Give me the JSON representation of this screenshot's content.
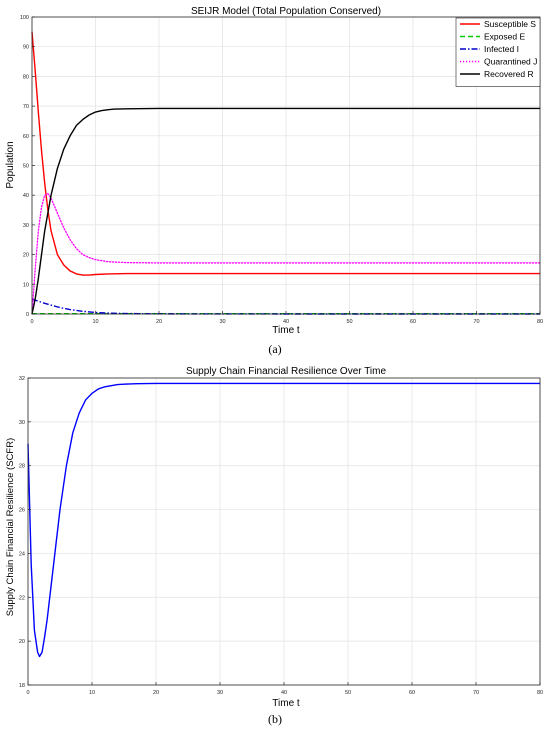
{
  "captions": {
    "a": "(a)",
    "b": "(b)"
  },
  "chart_data": [
    {
      "type": "line",
      "title": "SEIJR Model (Total Population Conserved)",
      "xlabel": "Time t",
      "ylabel": "Population",
      "xlim": [
        0,
        80
      ],
      "ylim": [
        0,
        100
      ],
      "xticks": [
        0,
        10,
        20,
        30,
        40,
        50,
        60,
        70,
        80
      ],
      "yticks": [
        0,
        10,
        20,
        30,
        40,
        50,
        60,
        70,
        80,
        90,
        100
      ],
      "grid": true,
      "legend_position": "top-right",
      "series": [
        {
          "name": "Susceptible S",
          "color": "#ff0000",
          "style": "solid",
          "x": [
            0,
            0.5,
            1,
            1.5,
            2,
            2.5,
            3,
            4,
            5,
            6,
            7,
            8,
            9,
            10,
            12,
            15,
            20,
            30,
            40,
            50,
            60,
            70,
            80
          ],
          "y": [
            95,
            82,
            68,
            55,
            44,
            35,
            28,
            20,
            16.5,
            14.5,
            13.5,
            13.1,
            13.1,
            13.3,
            13.5,
            13.6,
            13.6,
            13.6,
            13.6,
            13.6,
            13.6,
            13.6,
            13.6
          ]
        },
        {
          "name": "Exposed E",
          "color": "#00cc00",
          "style": "dashed",
          "x": [
            0,
            10,
            20,
            40,
            60,
            80
          ],
          "y": [
            0.1,
            0.1,
            0.1,
            0.1,
            0.1,
            0.1
          ]
        },
        {
          "name": "Infected I",
          "color": "#0000cc",
          "style": "dashdot",
          "x": [
            0,
            1,
            2,
            3,
            4,
            5,
            6,
            8,
            10,
            12,
            15,
            20,
            30,
            40,
            60,
            80
          ],
          "y": [
            5,
            4.3,
            3.6,
            3.0,
            2.4,
            1.9,
            1.5,
            0.9,
            0.5,
            0.3,
            0.15,
            0.05,
            0.02,
            0,
            0,
            0
          ]
        },
        {
          "name": "Quarantined J",
          "color": "#ff00ff",
          "style": "dotted",
          "x": [
            0,
            0.5,
            1,
            1.5,
            2,
            2.5,
            3,
            4,
            5,
            6,
            7,
            8,
            9,
            10,
            12,
            15,
            20,
            30,
            40,
            50,
            60,
            70,
            80
          ],
          "y": [
            0,
            15,
            28,
            36,
            40,
            40.5,
            39,
            34,
            29,
            25,
            22,
            20,
            19,
            18.3,
            17.6,
            17.3,
            17.2,
            17.2,
            17.2,
            17.2,
            17.2,
            17.2,
            17.2
          ]
        },
        {
          "name": "Recovered R",
          "color": "#000000",
          "style": "solid",
          "x": [
            0,
            0.5,
            1,
            1.5,
            2,
            3,
            4,
            5,
            6,
            7,
            8,
            9,
            10,
            11,
            12,
            13,
            15,
            20,
            30,
            40,
            50,
            60,
            70,
            80
          ],
          "y": [
            0,
            5,
            12,
            20,
            28,
            40,
            49,
            55.5,
            60,
            63.5,
            65.5,
            67,
            68,
            68.5,
            68.8,
            69,
            69.1,
            69.2,
            69.2,
            69.2,
            69.2,
            69.2,
            69.2,
            69.2
          ]
        }
      ]
    },
    {
      "type": "line",
      "title": "Supply Chain Financial Resilience Over Time",
      "xlabel": "Time t",
      "ylabel": "Supply Chain Financial Resilience (SCFR)",
      "xlim": [
        0,
        80
      ],
      "ylim": [
        18,
        32
      ],
      "xticks": [
        0,
        10,
        20,
        30,
        40,
        50,
        60,
        70,
        80
      ],
      "yticks": [
        18,
        20,
        22,
        24,
        26,
        28,
        30,
        32
      ],
      "grid": true,
      "series": [
        {
          "color": "#0000ff",
          "style": "solid",
          "x": [
            0,
            0.5,
            1,
            1.5,
            1.8,
            2.2,
            2.6,
            3,
            4,
            5,
            6,
            7,
            8,
            9,
            10,
            11,
            12,
            13,
            14,
            15,
            17,
            20,
            25,
            30,
            40,
            50,
            60,
            70,
            80
          ],
          "y": [
            29,
            23.5,
            20.5,
            19.5,
            19.3,
            19.5,
            20.2,
            21,
            23.5,
            26,
            28,
            29.5,
            30.4,
            31.0,
            31.3,
            31.5,
            31.6,
            31.65,
            31.7,
            31.72,
            31.74,
            31.75,
            31.75,
            31.75,
            31.75,
            31.75,
            31.75,
            31.75,
            31.75
          ]
        }
      ]
    }
  ]
}
